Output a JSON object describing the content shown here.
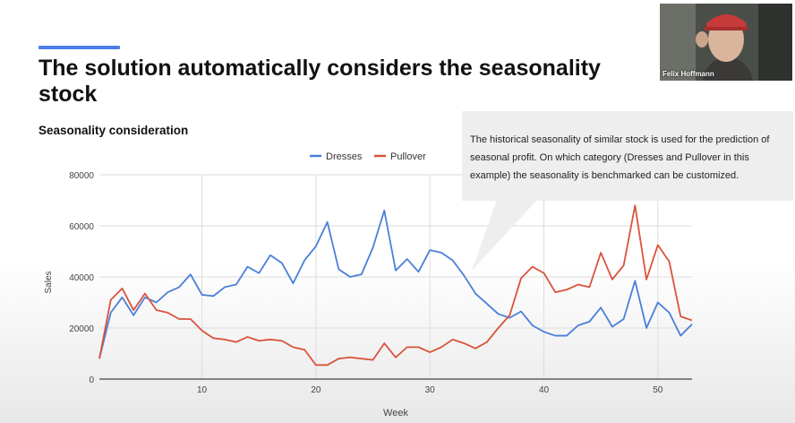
{
  "slide": {
    "title": "The solution automatically considers the seasonality stock",
    "section_heading": "Seasonality consideration",
    "accent_color": "#4a7ee8"
  },
  "callout": {
    "text": "The historical seasonality of similar stock is used for the prediction of seasonal profit. On which category (Dresses and Pullover in this example) the seasonality is benchmarked can be customized."
  },
  "webcam": {
    "participant_name": "Felix Hoffmann"
  },
  "chart_data": {
    "type": "line",
    "xlabel": "Week",
    "ylabel": "Sales",
    "xlim": [
      1,
      53
    ],
    "ylim": [
      0,
      80000
    ],
    "x_ticks": [
      10,
      20,
      30,
      40,
      50
    ],
    "y_ticks": [
      0,
      20000,
      40000,
      60000,
      80000
    ],
    "grid": true,
    "legend_position": "top-center",
    "x": [
      1,
      2,
      3,
      4,
      5,
      6,
      7,
      8,
      9,
      10,
      11,
      12,
      13,
      14,
      15,
      16,
      17,
      18,
      19,
      20,
      21,
      22,
      23,
      24,
      25,
      26,
      27,
      28,
      29,
      30,
      31,
      32,
      33,
      34,
      35,
      36,
      37,
      38,
      39,
      40,
      41,
      42,
      43,
      44,
      45,
      46,
      47,
      48,
      49,
      50,
      51,
      52,
      53
    ],
    "series": [
      {
        "name": "Dresses",
        "color": "#4a7fd9",
        "values": [
          8000,
          26000,
          32000,
          25000,
          32000,
          30000,
          34000,
          36000,
          41000,
          33000,
          32500,
          36000,
          37000,
          44000,
          41500,
          48500,
          45500,
          37500,
          46500,
          52000,
          61500,
          43000,
          40000,
          41000,
          51500,
          66000,
          42500,
          47000,
          42000,
          50500,
          49500,
          46500,
          40500,
          33500,
          29500,
          25500,
          24000,
          26500,
          21000,
          18500,
          17000,
          17000,
          21000,
          22500,
          28000,
          20500,
          23500,
          38500,
          20000,
          30000,
          26000,
          17000,
          21500
        ]
      },
      {
        "name": "Pullover",
        "color": "#d9533b",
        "values": [
          8000,
          31000,
          35500,
          27000,
          33500,
          27000,
          26000,
          23500,
          23500,
          19000,
          16000,
          15500,
          14500,
          16500,
          15000,
          15500,
          15000,
          12500,
          11500,
          5500,
          5500,
          8000,
          8500,
          8000,
          7500,
          14000,
          8500,
          12500,
          12500,
          10500,
          12500,
          15500,
          14000,
          12000,
          14500,
          20000,
          25000,
          39500,
          44000,
          41500,
          34000,
          35000,
          37000,
          36000,
          49500,
          39000,
          44500,
          68000,
          39000,
          52500,
          46000,
          24500,
          23000
        ]
      }
    ]
  }
}
